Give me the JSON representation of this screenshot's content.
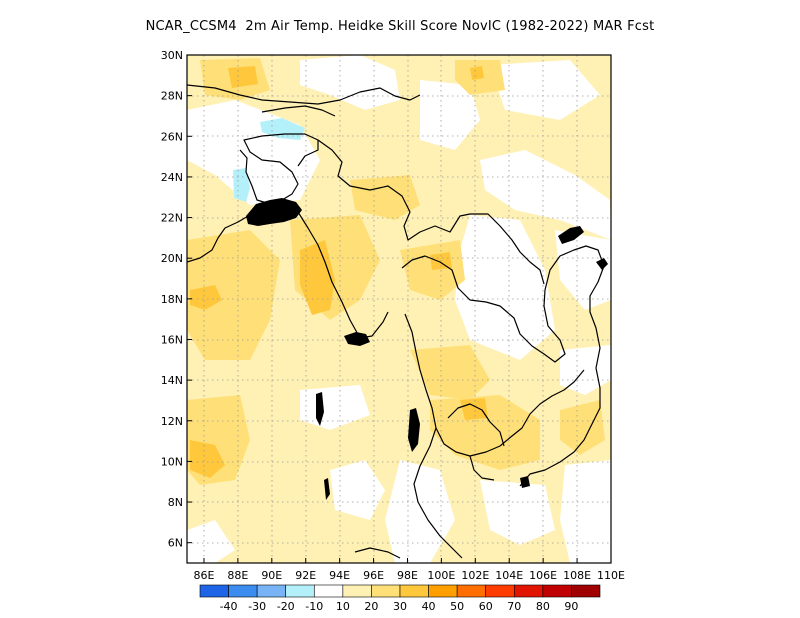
{
  "title": "NCAR_CCSM4  2m Air Temp. Heidke Skill Score NovIC (1982-2022) MAR Fcst",
  "map": {
    "lon_range": [
      85,
      110
    ],
    "lat_range": [
      5,
      30
    ],
    "lon_ticks": [
      {
        "value": 86,
        "label": "86E"
      },
      {
        "value": 88,
        "label": "88E"
      },
      {
        "value": 90,
        "label": "90E"
      },
      {
        "value": 92,
        "label": "92E"
      },
      {
        "value": 94,
        "label": "94E"
      },
      {
        "value": 96,
        "label": "96E"
      },
      {
        "value": 98,
        "label": "98E"
      },
      {
        "value": 100,
        "label": "100E"
      },
      {
        "value": 102,
        "label": "102E"
      },
      {
        "value": 104,
        "label": "104E"
      },
      {
        "value": 106,
        "label": "106E"
      },
      {
        "value": 108,
        "label": "108E"
      },
      {
        "value": 110,
        "label": "110E"
      }
    ],
    "lat_ticks": [
      {
        "value": 6,
        "label": "6N"
      },
      {
        "value": 8,
        "label": "8N"
      },
      {
        "value": 10,
        "label": "10N"
      },
      {
        "value": 12,
        "label": "12N"
      },
      {
        "value": 14,
        "label": "14N"
      },
      {
        "value": 16,
        "label": "16N"
      },
      {
        "value": 18,
        "label": "18N"
      },
      {
        "value": 20,
        "label": "20N"
      },
      {
        "value": 22,
        "label": "22N"
      },
      {
        "value": 24,
        "label": "24N"
      },
      {
        "value": 26,
        "label": "26N"
      },
      {
        "value": 28,
        "label": "28N"
      },
      {
        "value": 30,
        "label": "30N"
      }
    ],
    "gridlines": "dotted"
  },
  "colorbar": {
    "colors": [
      "#1e64e6",
      "#3c8cf0",
      "#78b4f5",
      "#b4f0fa",
      "#ffffff",
      "#fff0b4",
      "#ffe078",
      "#ffc83c",
      "#ffa000",
      "#ff6e00",
      "#ff3c00",
      "#e11400",
      "#c00000",
      "#a00000"
    ],
    "labels": [
      "-40",
      "-30",
      "-20",
      "-10",
      "10",
      "20",
      "30",
      "40",
      "50",
      "60",
      "70",
      "80",
      "90"
    ]
  }
}
